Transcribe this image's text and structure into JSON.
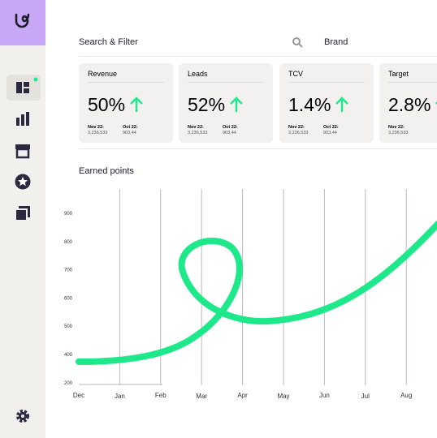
{
  "toolbar": {
    "search_label": "Search & Filter",
    "brand": "Brand"
  },
  "cards": [
    {
      "label": "Revenue",
      "value": "50%",
      "prev_label": "Nov 22:",
      "prev_value": "3,236,533",
      "cur_label": "Oct 22:",
      "cur_value": "903,44"
    },
    {
      "label": "Leads",
      "value": "52%",
      "prev_label": "Nov 22:",
      "prev_value": "3,236,533",
      "cur_label": "Oct 22:",
      "cur_value": "903,44"
    },
    {
      "label": "TCV",
      "value": "1.4%",
      "prev_label": "Nov 22:",
      "prev_value": "3,236,533",
      "cur_label": "Oct 22:",
      "cur_value": "903,44"
    },
    {
      "label": "Target",
      "value": "2.8%",
      "prev_label": "Nov 22:",
      "prev_value": "3,236,533"
    }
  ],
  "chart": {
    "title": "Earned points",
    "y_labels": [
      "900",
      "800",
      "700",
      "600",
      "500",
      "400",
      "200"
    ],
    "x_labels": [
      "Dec",
      "Jan",
      "Feb",
      "Mar",
      "Apr",
      "May",
      "Jun",
      "Jul",
      "Aug"
    ]
  }
}
